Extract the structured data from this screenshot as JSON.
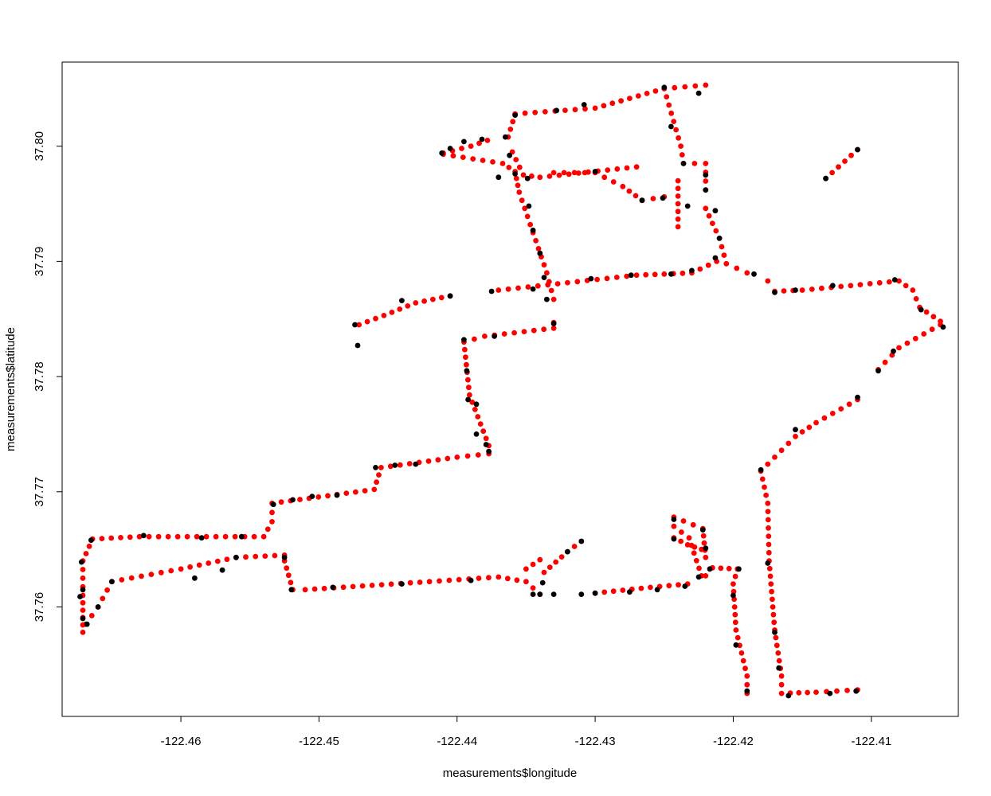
{
  "chart_data": {
    "type": "scatter",
    "title": "",
    "xlabel": "measurements$longitude",
    "ylabel": "measurements$latitude",
    "xlim": [
      -122.4686,
      -122.4037
    ],
    "ylim": [
      37.7505,
      37.8073
    ],
    "x_ticks": [
      "-122.46",
      "-122.45",
      "-122.44",
      "-122.43",
      "-122.42",
      "-122.41"
    ],
    "y_ticks": [
      "37.76",
      "37.77",
      "37.78",
      "37.79",
      "37.80"
    ],
    "grid": false,
    "legend": "none",
    "series": [
      {
        "color": "#ff0000",
        "polylines": [
          [
            [
              -122.4671,
              37.7578
            ],
            [
              -122.4671,
              37.761
            ],
            [
              -122.4671,
              37.764
            ],
            [
              -122.4664,
              37.7659
            ],
            [
              -122.463,
              37.7661
            ],
            [
              -122.454,
              37.7661
            ],
            [
              -122.4534,
              37.7674
            ],
            [
              -122.4534,
              37.769
            ],
            [
              -122.446,
              37.7702
            ],
            [
              -122.4455,
              37.7721
            ],
            [
              -122.44,
              37.773
            ],
            [
              -122.4377,
              37.7733
            ],
            [
              -122.4377,
              37.774
            ],
            [
              -122.4391,
              37.7784
            ],
            [
              -122.4395,
              37.783
            ],
            [
              -122.438,
              37.7835
            ],
            [
              -122.433,
              37.7842
            ],
            [
              -122.433,
              37.7847
            ]
          ],
          [
            [
              -122.4471,
              37.7845
            ],
            [
              -122.4453,
              37.7853
            ],
            [
              -122.443,
              37.7864
            ],
            [
              -122.4405,
              37.787
            ]
          ],
          [
            [
              -122.437,
              37.7875
            ],
            [
              -122.427,
              37.7888
            ],
            [
              -122.425,
              37.7889
            ],
            [
              -122.423,
              37.789
            ],
            [
              -122.4212,
              37.79
            ]
          ],
          [
            [
              -122.433,
              37.7867
            ],
            [
              -122.4335,
              37.789
            ],
            [
              -122.4355,
              37.796
            ],
            [
              -122.4358,
              37.7978
            ],
            [
              -122.4367,
              37.7985
            ],
            [
              -122.441,
              37.7993
            ]
          ],
          [
            [
              -122.441,
              37.7994
            ],
            [
              -122.439,
              37.8
            ],
            [
              -122.4378,
              37.8005
            ]
          ],
          [
            [
              -122.436,
              37.7995
            ],
            [
              -122.4352,
              37.7975
            ],
            [
              -122.434,
              37.7973
            ],
            [
              -122.427,
              37.7982
            ]
          ],
          [
            [
              -122.433,
              37.7977
            ],
            [
              -122.43,
              37.7977
            ],
            [
              -122.428,
              37.7965
            ],
            [
              -122.4266,
              37.7953
            ],
            [
              -122.425,
              37.7956
            ]
          ],
          [
            [
              -122.4363,
              37.8008
            ],
            [
              -122.4358,
              37.8028
            ],
            [
              -122.43,
              37.8033
            ],
            [
              -122.425,
              37.805
            ],
            [
              -122.422,
              37.8053
            ]
          ],
          [
            [
              -122.425,
              37.805
            ],
            [
              -122.4238,
              37.8
            ],
            [
              -122.4236,
              37.7985
            ],
            [
              -122.422,
              37.7985
            ],
            [
              -122.422,
              37.7962
            ]
          ],
          [
            [
              -122.422,
              37.7946
            ],
            [
              -122.421,
              37.792
            ],
            [
              -122.4205,
              37.7898
            ],
            [
              -122.419,
              37.789
            ]
          ],
          [
            [
              -122.424,
              37.797
            ],
            [
              -122.424,
              37.793
            ]
          ],
          [
            [
              -122.4175,
              37.7883
            ],
            [
              -122.417,
              37.7874
            ],
            [
              -122.415,
              37.7875
            ],
            [
              -122.408,
              37.7883
            ],
            [
              -122.407,
              37.7875
            ],
            [
              -122.4065,
              37.786
            ],
            [
              -122.405,
              37.7848
            ]
          ],
          [
            [
              -122.405,
              37.7845
            ],
            [
              -122.408,
              37.7825
            ],
            [
              -122.4095,
              37.7806
            ]
          ],
          [
            [
              -122.411,
              37.778
            ],
            [
              -122.414,
              37.776
            ],
            [
              -122.4155,
              37.7748
            ],
            [
              -122.417,
              37.773
            ],
            [
              -122.418,
              37.7718
            ],
            [
              -122.4175,
              37.769
            ],
            [
              -122.4174,
              37.764
            ],
            [
              -122.417,
              37.758
            ],
            [
              -122.4165,
              37.754
            ],
            [
              -122.4165,
              37.7525
            ],
            [
              -122.414,
              37.7526
            ],
            [
              -122.411,
              37.7528
            ]
          ],
          [
            [
              -122.419,
              37.7525
            ],
            [
              -122.419,
              37.754
            ],
            [
              -122.4198,
              37.758
            ],
            [
              -122.42,
              37.762
            ],
            [
              -122.4197,
              37.7633
            ],
            [
              -122.4215,
              37.7634
            ],
            [
              -122.422,
              37.7627
            ]
          ],
          [
            [
              -122.4233,
              37.762
            ],
            [
              -122.426,
              37.7617
            ],
            [
              -122.43,
              37.7612
            ]
          ],
          [
            [
              -122.4223,
              37.7627
            ],
            [
              -122.4232,
              37.766
            ],
            [
              -122.4243,
              37.767
            ],
            [
              -122.4243,
              37.7678
            ],
            [
              -122.4222,
              37.7668
            ],
            [
              -122.422,
              37.7643
            ]
          ],
          [
            [
              -122.4223,
              37.765
            ],
            [
              -122.4233,
              37.7654
            ],
            [
              -122.4243,
              37.766
            ]
          ],
          [
            [
              -122.434,
              37.7611
            ],
            [
              -122.435,
              37.7622
            ],
            [
              -122.437,
              37.7626
            ],
            [
              -122.442,
              37.7622
            ],
            [
              -122.451,
              37.7615
            ],
            [
              -122.4519,
              37.7615
            ],
            [
              -122.4525,
              37.764
            ]
          ],
          [
            [
              -122.4525,
              37.7645
            ],
            [
              -122.456,
              37.7643
            ],
            [
              -122.46,
              37.7633
            ],
            [
              -122.465,
              37.7622
            ],
            [
              -122.466,
              37.76
            ],
            [
              -122.4669,
              37.7585
            ]
          ],
          [
            [
              -122.4337,
              37.763
            ],
            [
              -122.432,
              37.7648
            ],
            [
              -122.431,
              37.7657
            ]
          ],
          [
            [
              -122.435,
              37.7633
            ],
            [
              -122.434,
              37.7641
            ]
          ],
          [
            [
              -122.4133,
              37.7972
            ],
            [
              -122.411,
              37.7997
            ]
          ]
        ]
      },
      {
        "color": "#000000",
        "points": [
          [
            -122.4671,
            37.759
          ],
          [
            -122.4671,
            37.7615
          ],
          [
            -122.4665,
            37.7658
          ],
          [
            -122.4668,
            37.7585
          ],
          [
            -122.4673,
            37.7609
          ],
          [
            -122.4672,
            37.7639
          ],
          [
            -122.4627,
            37.7662
          ],
          [
            -122.4585,
            37.766
          ],
          [
            -122.4556,
            37.7661
          ],
          [
            -122.4533,
            37.7689
          ],
          [
            -122.4519,
            37.7693
          ],
          [
            -122.4505,
            37.7696
          ],
          [
            -122.4487,
            37.7697
          ],
          [
            -122.4459,
            37.7721
          ],
          [
            -122.4445,
            37.7723
          ],
          [
            -122.443,
            37.7724
          ],
          [
            -122.4386,
            37.775
          ],
          [
            -122.4392,
            37.778
          ],
          [
            -122.4393,
            37.7805
          ],
          [
            -122.4395,
            37.7832
          ],
          [
            -122.4373,
            37.7835
          ],
          [
            -122.433,
            37.7846
          ],
          [
            -122.4474,
            37.7845
          ],
          [
            -122.4472,
            37.7827
          ],
          [
            -122.444,
            37.7866
          ],
          [
            -122.4405,
            37.787
          ],
          [
            -122.4375,
            37.7874
          ],
          [
            -122.4345,
            37.7876
          ],
          [
            -122.4303,
            37.7885
          ],
          [
            -122.4274,
            37.7888
          ],
          [
            -122.4245,
            37.7889
          ],
          [
            -122.423,
            37.7892
          ],
          [
            -122.4213,
            37.7903
          ],
          [
            -122.4185,
            37.7889
          ],
          [
            -122.4335,
            37.7867
          ],
          [
            -122.4337,
            37.7886
          ],
          [
            -122.434,
            37.7907
          ],
          [
            -122.4345,
            37.7927
          ],
          [
            -122.4348,
            37.7948
          ],
          [
            -122.4358,
            37.7976
          ],
          [
            -122.437,
            37.7973
          ],
          [
            -122.4349,
            37.7972
          ],
          [
            -122.4362,
            37.7992
          ],
          [
            -122.4382,
            37.8006
          ],
          [
            -122.4411,
            37.7994
          ],
          [
            -122.4405,
            37.7998
          ],
          [
            -122.4395,
            37.8004
          ],
          [
            -122.4365,
            37.8008
          ],
          [
            -122.4358,
            37.8027
          ],
          [
            -122.4328,
            37.8031
          ],
          [
            -122.4308,
            37.8036
          ],
          [
            -122.43,
            37.7978
          ],
          [
            -122.4266,
            37.7953
          ],
          [
            -122.425,
            37.8051
          ],
          [
            -122.4245,
            37.8017
          ],
          [
            -122.4236,
            37.7985
          ],
          [
            -122.4225,
            37.8046
          ],
          [
            -122.422,
            37.7962
          ],
          [
            -122.4213,
            37.7944
          ],
          [
            -122.421,
            37.792
          ],
          [
            -122.4251,
            37.7955
          ],
          [
            -122.4233,
            37.7948
          ],
          [
            -122.422,
            37.7975
          ],
          [
            -122.417,
            37.7873
          ],
          [
            -122.4155,
            37.7875
          ],
          [
            -122.4128,
            37.7879
          ],
          [
            -122.4083,
            37.7884
          ],
          [
            -122.4048,
            37.7843
          ],
          [
            -122.4064,
            37.7858
          ],
          [
            -122.4095,
            37.7805
          ],
          [
            -122.4084,
            37.7822
          ],
          [
            -122.411,
            37.7782
          ],
          [
            -122.4155,
            37.7754
          ],
          [
            -122.418,
            37.7719
          ],
          [
            -122.4175,
            37.7638
          ],
          [
            -122.417,
            37.7578
          ],
          [
            -122.4167,
            37.7547
          ],
          [
            -122.416,
            37.7523
          ],
          [
            -122.413,
            37.7525
          ],
          [
            -122.4111,
            37.7527
          ],
          [
            -122.419,
            37.7527
          ],
          [
            -122.4198,
            37.7567
          ],
          [
            -122.42,
            37.761
          ],
          [
            -122.4196,
            37.7633
          ],
          [
            -122.4225,
            37.7626
          ],
          [
            -122.4235,
            37.7618
          ],
          [
            -122.4255,
            37.7615
          ],
          [
            -122.4275,
            37.7613
          ],
          [
            -122.43,
            37.7612
          ],
          [
            -122.431,
            37.7611
          ],
          [
            -122.4243,
            37.7676
          ],
          [
            -122.4243,
            37.7659
          ],
          [
            -122.4222,
            37.7667
          ],
          [
            -122.422,
            37.7651
          ],
          [
            -122.4217,
            37.7633
          ],
          [
            -122.4345,
            37.7611
          ],
          [
            -122.4338,
            37.7621
          ],
          [
            -122.433,
            37.7611
          ],
          [
            -122.439,
            37.7623
          ],
          [
            -122.444,
            37.762
          ],
          [
            -122.449,
            37.7617
          ],
          [
            -122.452,
            37.7615
          ],
          [
            -122.4525,
            37.7643
          ],
          [
            -122.456,
            37.7643
          ],
          [
            -122.457,
            37.7632
          ],
          [
            -122.459,
            37.7625
          ],
          [
            -122.465,
            37.7622
          ],
          [
            -122.466,
            37.76
          ],
          [
            -122.434,
            37.7611
          ],
          [
            -122.432,
            37.7648
          ],
          [
            -122.431,
            37.7657
          ],
          [
            -122.4133,
            37.7972
          ],
          [
            -122.411,
            37.7997
          ],
          [
            -122.4377,
            37.7735
          ],
          [
            -122.4379,
            37.7741
          ],
          [
            -122.4386,
            37.7776
          ]
        ]
      }
    ]
  }
}
